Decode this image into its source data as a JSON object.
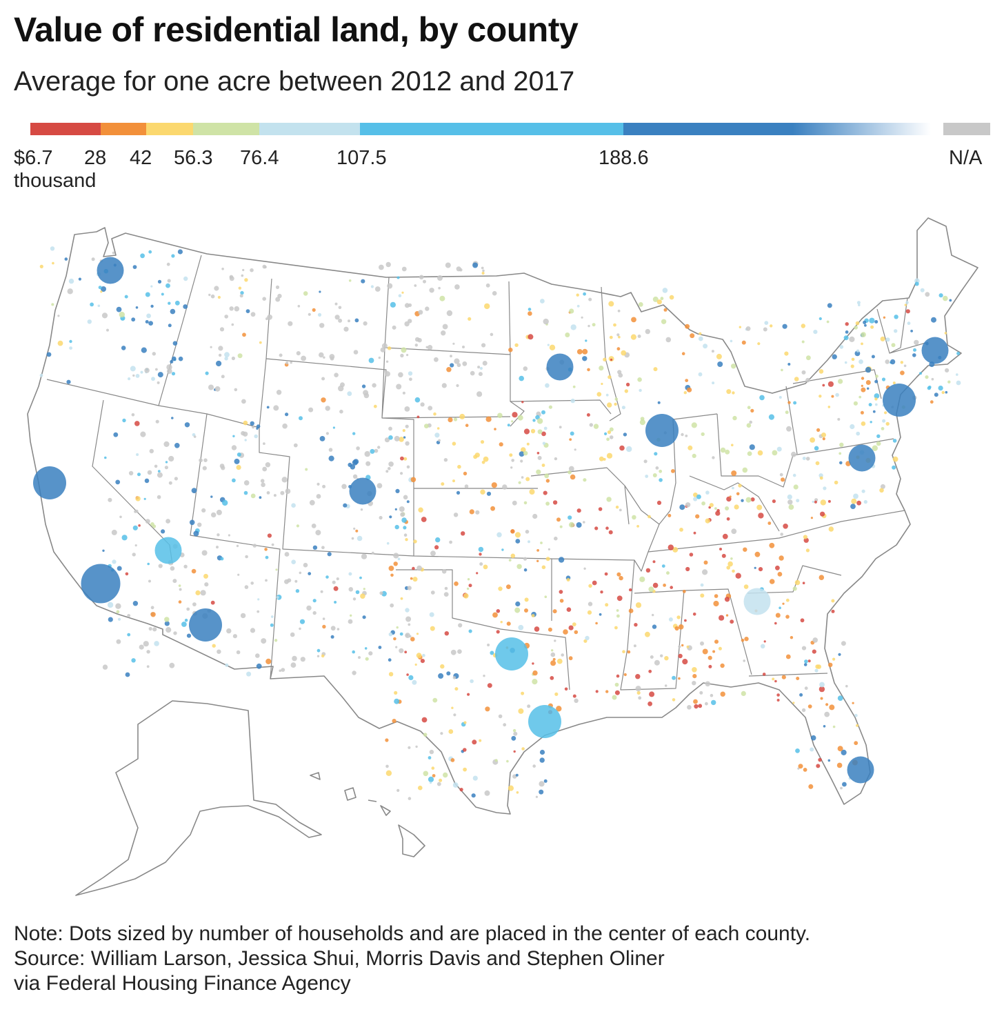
{
  "header": {
    "title": "Value of residential land, by county",
    "subtitle": "Average for one acre between 2012 and 2017"
  },
  "legend": {
    "unit_label": "thousand",
    "stops": [
      {
        "label": "$6.7",
        "value": 6.7,
        "color": "#d64a43"
      },
      {
        "label": "28",
        "value": 28,
        "color": "#f2903a"
      },
      {
        "label": "42",
        "value": 42,
        "color": "#fbd86f"
      },
      {
        "label": "56.3",
        "value": 56.3,
        "color": "#cfe3a6"
      },
      {
        "label": "76.4",
        "value": 76.4,
        "color": "#c3e2ee"
      },
      {
        "label": "107.5",
        "value": 107.5,
        "color": "#56bfe8"
      },
      {
        "label": "188.6",
        "value": 188.6,
        "color": "#3a80c0"
      }
    ],
    "na": {
      "label": "N/A",
      "color": "#c8c8c8"
    }
  },
  "map": {
    "description_regions": [
      "Contiguous United States",
      "Alaska",
      "Hawaii"
    ],
    "outline_color": "#888888"
  },
  "chart_data": {
    "type": "map",
    "title": "Value of residential land, by county",
    "subtitle": "Average for one acre between 2012 and 2017",
    "scale_breaks_thousand_usd": [
      6.7,
      28,
      42,
      56.3,
      76.4,
      107.5,
      188.6
    ],
    "size_encoding": "number of households",
    "metro_highlights": [
      {
        "area": "Los Angeles",
        "class": "188.6+",
        "size": 5
      },
      {
        "area": "San Francisco Bay Area",
        "class": "188.6+",
        "size": 4
      },
      {
        "area": "Seattle",
        "class": "188.6+",
        "size": 3
      },
      {
        "area": "Phoenix",
        "class": "188.6+",
        "size": 4
      },
      {
        "area": "Chicago",
        "class": "188.6+",
        "size": 4
      },
      {
        "area": "New York",
        "class": "188.6+",
        "size": 4
      },
      {
        "area": "Washington DC",
        "class": "188.6+",
        "size": 3
      },
      {
        "area": "Boston",
        "class": "188.6+",
        "size": 3
      },
      {
        "area": "Denver",
        "class": "188.6+",
        "size": 3
      },
      {
        "area": "Houston",
        "class": "107.5-188.6",
        "size": 4
      },
      {
        "area": "Dallas",
        "class": "107.5-188.6",
        "size": 4
      },
      {
        "area": "Atlanta",
        "class": "76.4-107.5",
        "size": 3
      },
      {
        "area": "Miami",
        "class": "188.6+",
        "size": 3
      },
      {
        "area": "Minneapolis",
        "class": "188.6+",
        "size": 3
      },
      {
        "area": "Las Vegas",
        "class": "107.5-188.6",
        "size": 3
      }
    ]
  },
  "notes": {
    "note": "Note: Dots sized by number of households and are placed in the center of each county.",
    "source_line1": "Source: William Larson, Jessica Shui, Morris Davis and Stephen Oliner",
    "source_line2": "via Federal Housing Finance Agency"
  }
}
